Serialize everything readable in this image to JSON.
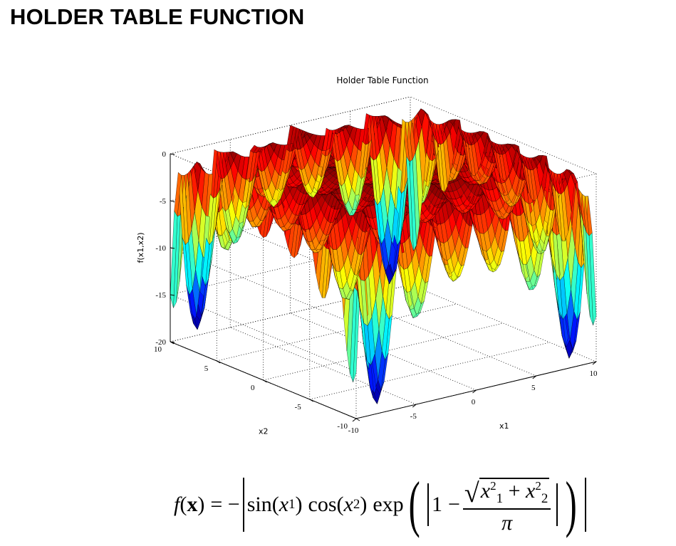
{
  "page_title": "HOLDER TABLE FUNCTION",
  "chart_data": {
    "type": "surface",
    "title": "Holder Table Function",
    "xlabel": "x1",
    "ylabel": "x2",
    "zlabel": "f(x1,x2)",
    "xlim": [
      -10,
      10
    ],
    "ylim": [
      -10,
      10
    ],
    "zlim": [
      -20,
      0
    ],
    "x_ticks": [
      {
        "v": -10,
        "label": "-10"
      },
      {
        "v": -5,
        "label": "-5"
      },
      {
        "v": 0,
        "label": "0"
      },
      {
        "v": 5,
        "label": "5"
      },
      {
        "v": 10,
        "label": "10"
      }
    ],
    "y_ticks": [
      {
        "v": -10,
        "label": "-10"
      },
      {
        "v": -5,
        "label": "-5"
      },
      {
        "v": 0,
        "label": "0"
      },
      {
        "v": 5,
        "label": "5"
      },
      {
        "v": 10,
        "label": "10"
      }
    ],
    "z_ticks": [
      {
        "v": -20,
        "label": "-20"
      },
      {
        "v": -15,
        "label": "-15"
      },
      {
        "v": -10,
        "label": "-10"
      },
      {
        "v": -5,
        "label": "-5"
      },
      {
        "v": 0,
        "label": "0"
      }
    ],
    "grid": true,
    "colormap": "jet",
    "function": "holder_table"
  },
  "formula": {
    "lhs": "f",
    "arg": "x",
    "equals": "= −",
    "sin": "sin",
    "cos": "cos",
    "exp": "exp",
    "x1": "x",
    "one": "1",
    "minus": "−",
    "plus": "+",
    "pi": "π",
    "sub1": "1",
    "sub2": "2",
    "sq": "2"
  }
}
